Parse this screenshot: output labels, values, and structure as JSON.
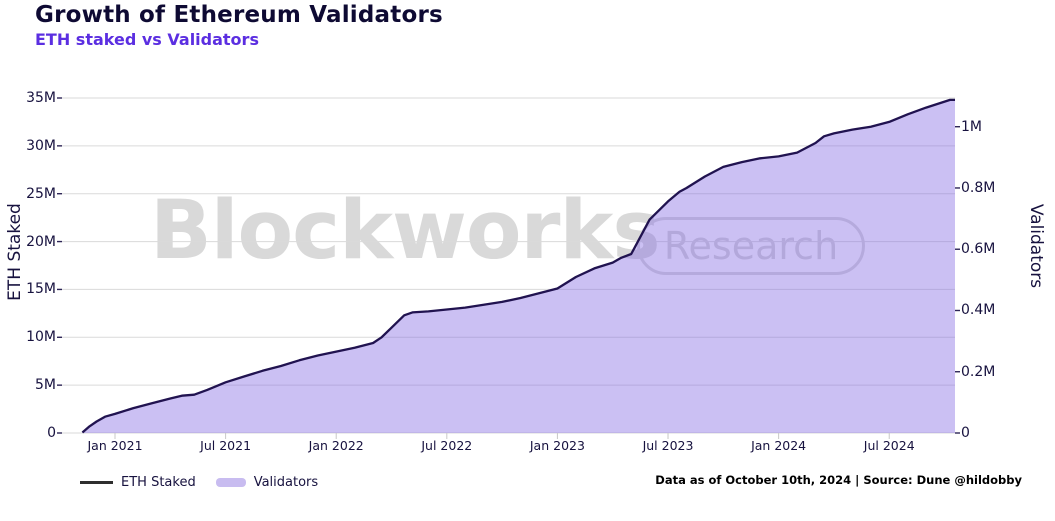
{
  "header": {
    "title": "Growth of Ethereum Validators",
    "subtitle": "ETH staked vs Validators"
  },
  "watermark": {
    "text": "Blockworks",
    "badge": "Research"
  },
  "legend": {
    "items": [
      {
        "label": "ETH Staked",
        "type": "line"
      },
      {
        "label": "Validators",
        "type": "area"
      }
    ]
  },
  "footer_note": "Data as of October 10th, 2024 | Source: Dune @hildobby",
  "colors": {
    "title": "#0e0a33",
    "subtitle_purple": "#5b2ee1",
    "line": "#211350",
    "area_fill_rgba": "rgba(132,105,226,0.42)",
    "area_swatch": "#c8bcf0",
    "gridline": "#dadada",
    "watermark_gray": "#d9d9d9",
    "axis_text": "#17123f"
  },
  "chart_data": {
    "type": "line+area",
    "title": "Growth of Ethereum Validators",
    "subtitle": "ETH staked vs Validators",
    "grid": "horizontal",
    "legend_position": "bottom-left",
    "x_axis": {
      "ticks": [
        {
          "m": 0,
          "label": "Jan 2021"
        },
        {
          "m": 6,
          "label": "Jul 2021"
        },
        {
          "m": 12,
          "label": "Jan 2022"
        },
        {
          "m": 18,
          "label": "Jul 2022"
        },
        {
          "m": 24,
          "label": "Jan 2023"
        },
        {
          "m": 30,
          "label": "Jul 2023"
        },
        {
          "m": 36,
          "label": "Jan 2024"
        },
        {
          "m": 42,
          "label": "Jul 2024"
        }
      ],
      "range": [
        "2020-11-08",
        "2024-10-10"
      ]
    },
    "y_left": {
      "title": "ETH Staked",
      "lim": [
        0,
        35000000
      ],
      "ticks": [
        {
          "v": 0,
          "label": "0"
        },
        {
          "v": 5,
          "label": "5M"
        },
        {
          "v": 10,
          "label": "10M"
        },
        {
          "v": 15,
          "label": "15M"
        },
        {
          "v": 20,
          "label": "20M"
        },
        {
          "v": 25,
          "label": "25M"
        },
        {
          "v": 30,
          "label": "30M"
        },
        {
          "v": 35,
          "label": "35M"
        }
      ]
    },
    "y_right": {
      "title": "Validators",
      "scale_note": "right axis = left axis / 32",
      "ticks": [
        {
          "v": 0.0,
          "label": "0"
        },
        {
          "v": 0.2,
          "label": "0.2M"
        },
        {
          "v": 0.4,
          "label": "0.4M"
        },
        {
          "v": 0.6,
          "label": "0.6M"
        },
        {
          "v": 0.8,
          "label": "0.8M"
        },
        {
          "v": 1.0,
          "label": "1M"
        }
      ]
    },
    "dates": [
      "2020-11-08",
      "2020-11-20",
      "2020-12-01",
      "2020-12-15",
      "2021-01-01",
      "2021-02-01",
      "2021-03-01",
      "2021-04-01",
      "2021-04-20",
      "2021-05-10",
      "2021-06-01",
      "2021-07-01",
      "2021-08-01",
      "2021-09-01",
      "2021-10-01",
      "2021-11-01",
      "2021-12-01",
      "2022-01-01",
      "2022-02-01",
      "2022-03-01",
      "2022-03-15",
      "2022-04-01",
      "2022-04-22",
      "2022-05-05",
      "2022-06-01",
      "2022-07-01",
      "2022-08-01",
      "2022-09-01",
      "2022-10-01",
      "2022-11-01",
      "2022-12-01",
      "2023-01-01",
      "2023-02-01",
      "2023-03-01",
      "2023-04-01",
      "2023-04-15",
      "2023-05-01",
      "2023-06-01",
      "2023-07-01",
      "2023-07-20",
      "2023-08-01",
      "2023-09-01",
      "2023-10-01",
      "2023-11-01",
      "2023-12-01",
      "2024-01-01",
      "2024-02-01",
      "2024-03-01",
      "2024-03-15",
      "2024-04-01",
      "2024-05-01",
      "2024-06-01",
      "2024-07-01",
      "2024-08-01",
      "2024-09-01",
      "2024-10-10"
    ],
    "series": [
      {
        "name": "ETH Staked",
        "axis": "left",
        "unit": "millions of ETH",
        "values": [
          0.05,
          0.7,
          1.2,
          1.7,
          2.0,
          2.6,
          3.1,
          3.6,
          3.9,
          4.0,
          4.5,
          5.3,
          5.9,
          6.5,
          7.0,
          7.6,
          8.1,
          8.5,
          8.9,
          9.4,
          10.0,
          11.0,
          12.3,
          12.6,
          12.7,
          12.9,
          13.1,
          13.4,
          13.7,
          14.1,
          14.6,
          15.1,
          16.3,
          17.2,
          17.8,
          18.3,
          18.7,
          22.3,
          24.2,
          25.2,
          25.6,
          26.8,
          27.8,
          28.3,
          28.7,
          28.9,
          29.3,
          30.3,
          31.0,
          31.3,
          31.7,
          32.0,
          32.5,
          33.3,
          34.0,
          34.8
        ]
      },
      {
        "name": "Validators",
        "axis": "right",
        "unit": "millions of validators",
        "values": [
          0.002,
          0.022,
          0.038,
          0.053,
          0.063,
          0.081,
          0.097,
          0.113,
          0.122,
          0.125,
          0.141,
          0.166,
          0.184,
          0.203,
          0.219,
          0.238,
          0.253,
          0.266,
          0.278,
          0.294,
          0.313,
          0.344,
          0.384,
          0.394,
          0.397,
          0.403,
          0.409,
          0.419,
          0.428,
          0.441,
          0.456,
          0.472,
          0.509,
          0.538,
          0.556,
          0.572,
          0.584,
          0.697,
          0.756,
          0.788,
          0.8,
          0.838,
          0.869,
          0.884,
          0.897,
          0.903,
          0.916,
          0.947,
          0.969,
          0.978,
          0.991,
          1.0,
          1.016,
          1.041,
          1.063,
          1.088
        ]
      }
    ]
  }
}
